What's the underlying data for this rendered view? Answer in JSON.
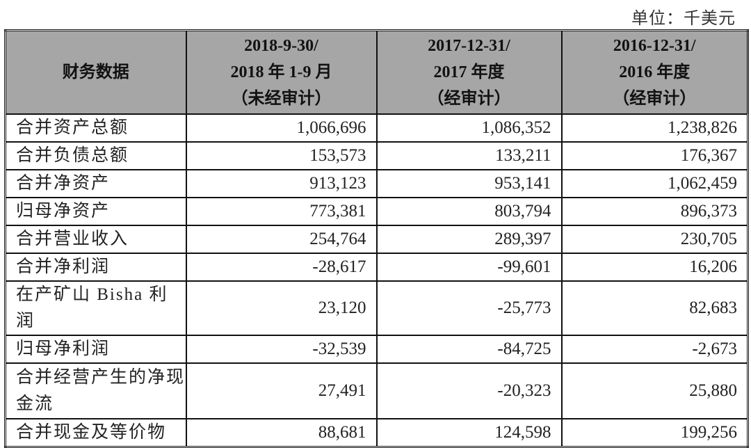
{
  "unit_label": "单位：千美元",
  "table": {
    "headers": [
      {
        "lines": [
          "财务数据"
        ]
      },
      {
        "lines": [
          "2018-9-30/",
          "2018 年 1-9 月",
          "（未经审计）"
        ]
      },
      {
        "lines": [
          "2017-12-31/",
          "2017 年度",
          "（经审计）"
        ]
      },
      {
        "lines": [
          "2016-12-31/",
          "2016 年度",
          "（经审计）"
        ]
      }
    ],
    "rows": [
      {
        "label": "合并资产总额",
        "values": [
          "1,066,696",
          "1,086,352",
          "1,238,826"
        ]
      },
      {
        "label": "合并负债总额",
        "values": [
          "153,573",
          "133,211",
          "176,367"
        ]
      },
      {
        "label": "合并净资产",
        "values": [
          "913,123",
          "953,141",
          "1,062,459"
        ]
      },
      {
        "label": "归母净资产",
        "values": [
          "773,381",
          "803,794",
          "896,373"
        ]
      },
      {
        "label": "合并营业收入",
        "values": [
          "254,764",
          "289,397",
          "230,705"
        ]
      },
      {
        "label": "合并净利润",
        "values": [
          "-28,617",
          "-99,601",
          "16,206"
        ]
      },
      {
        "label": "在产矿山 Bisha 利润",
        "values": [
          "23,120",
          "-25,773",
          "82,683"
        ]
      },
      {
        "label": "归母净利润",
        "values": [
          "-32,539",
          "-84,725",
          "-2,673"
        ]
      },
      {
        "label_lines": [
          "合并经营产生的净现",
          "金流"
        ],
        "values": [
          "27,491",
          "-20,323",
          "25,880"
        ]
      },
      {
        "label": "合并现金及等价物",
        "values": [
          "88,681",
          "124,598",
          "199,256"
        ]
      }
    ]
  },
  "colors": {
    "header_bg": "#a6a6a6",
    "border": "#111111"
  }
}
